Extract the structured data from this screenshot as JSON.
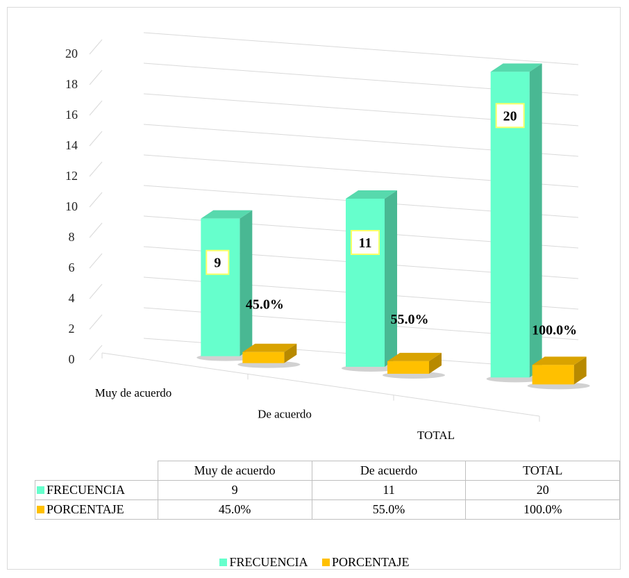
{
  "chart_data": {
    "type": "bar",
    "categories": [
      "Muy de acuerdo",
      "De acuerdo",
      "TOTAL"
    ],
    "series": [
      {
        "name": "FRECUENCIA",
        "values": [
          9,
          11,
          20
        ],
        "labels": [
          "9",
          "11",
          "20"
        ],
        "color": "#66ffcc"
      },
      {
        "name": "PORCENTAJE",
        "values": [
          0.45,
          0.55,
          1.0
        ],
        "labels": [
          "45.0%",
          "55.0%",
          "100.0%"
        ],
        "color": "#ffc000"
      }
    ],
    "ylim": [
      0,
      20
    ],
    "yticks": [
      "0",
      "2",
      "4",
      "6",
      "8",
      "10",
      "12",
      "14",
      "16",
      "18",
      "20"
    ],
    "grid": true,
    "three_d": true,
    "legend_position": "bottom",
    "data_table": {
      "headers": [
        "Muy de acuerdo",
        "De acuerdo",
        "TOTAL"
      ],
      "rows": [
        {
          "label": "FRECUENCIA",
          "values": [
            "9",
            "11",
            "20"
          ]
        },
        {
          "label": "PORCENTAJE",
          "values": [
            "45.0%",
            "55.0%",
            "100.0%"
          ]
        }
      ]
    }
  }
}
